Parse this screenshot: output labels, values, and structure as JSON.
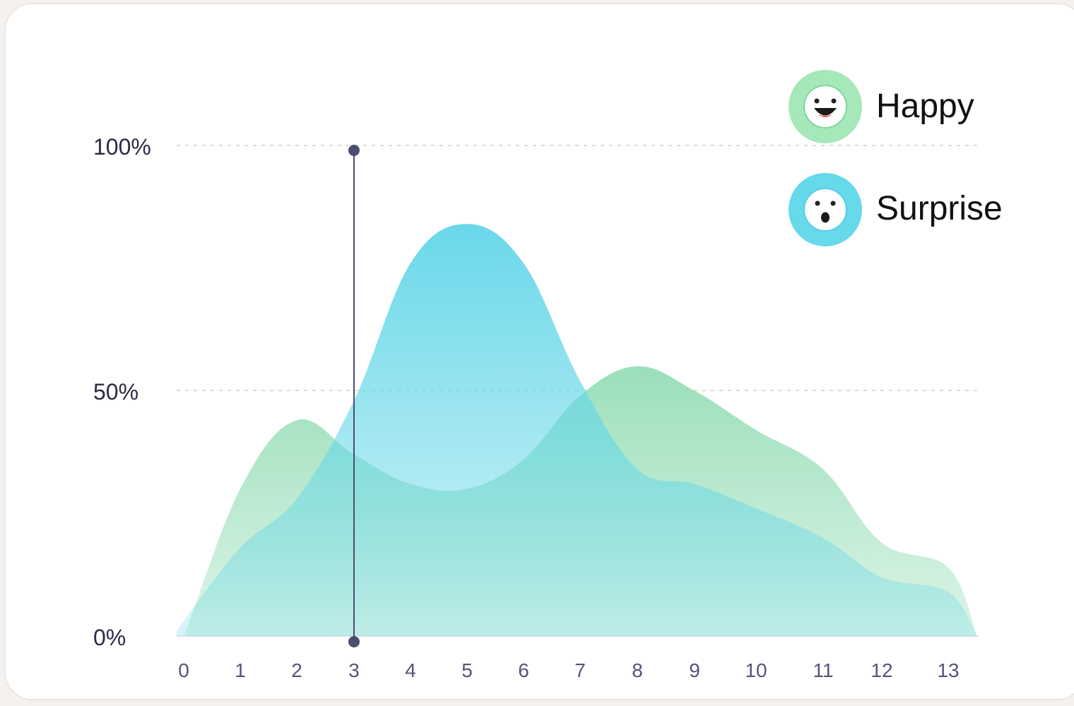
{
  "chart_data": {
    "type": "area",
    "title": "",
    "xlabel": "",
    "ylabel": "",
    "x": [
      0,
      1,
      2,
      3,
      4,
      5,
      6,
      7,
      8,
      9,
      10,
      11,
      12,
      13
    ],
    "x_tick_labels": [
      "0",
      "1",
      "2",
      "3",
      "4",
      "5",
      "6",
      "7",
      "8",
      "9",
      "10",
      "11",
      "12",
      "13"
    ],
    "y_tick_labels": [
      "100%",
      "50%",
      "0%"
    ],
    "y_ticks": [
      100,
      50,
      0
    ],
    "ylim": [
      0,
      100
    ],
    "grid": "dashed horizontal at 50% and 100%",
    "legend_position": "top-right",
    "cursor_x": 3,
    "series": [
      {
        "name": "Happy",
        "color": "#8fdcb2",
        "icon": "happy-face-icon",
        "values": [
          0,
          30,
          44,
          37,
          31,
          30,
          36,
          49,
          55,
          50,
          42,
          34,
          19,
          14
        ]
      },
      {
        "name": "Surprise",
        "color": "#62d6e8",
        "icon": "surprised-face-icon",
        "values": [
          3,
          18,
          28,
          48,
          76,
          84,
          76,
          52,
          34,
          31,
          26,
          20,
          12,
          9
        ]
      }
    ]
  }
}
